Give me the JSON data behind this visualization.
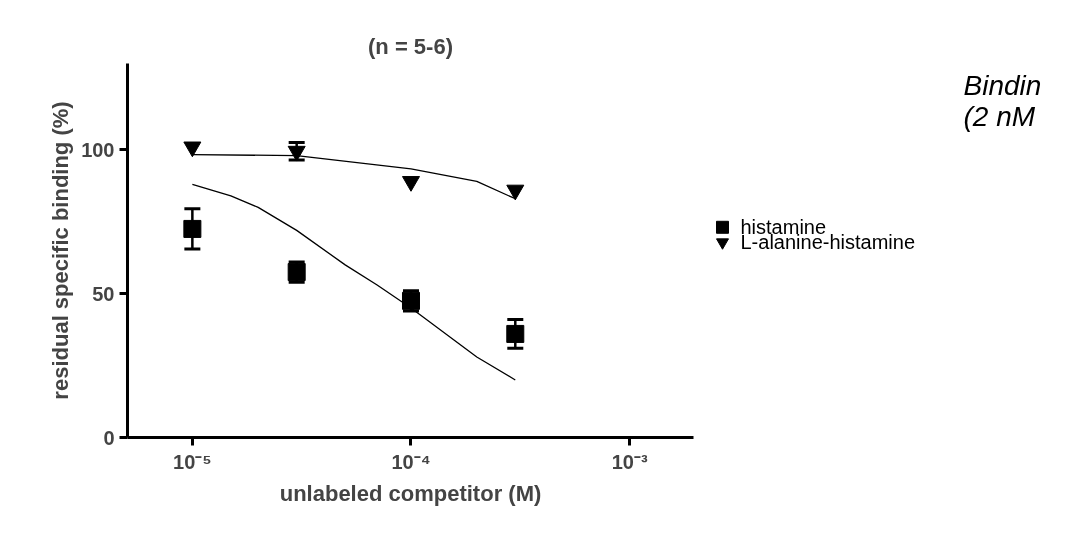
{
  "chart_data": {
    "type": "scatter",
    "title": "(n = 5-6)",
    "xlabel": "unlabeled competitor (M)",
    "ylabel": "residual specific binding (%)",
    "annotations": [
      "Bindin",
      "(2 nM"
    ],
    "log": "x",
    "xlim": [
      5.05e-06,
      0.00196
    ],
    "xticks": [
      {
        "value": 1e-05,
        "label": "10⁻⁵"
      },
      {
        "value": 0.0001,
        "label": "10⁻⁴"
      },
      {
        "value": 0.001,
        "label": "10⁻³"
      }
    ],
    "ylim": [
      0,
      130
    ],
    "yticks": [
      0,
      50,
      100
    ],
    "grid": false,
    "legend": "right",
    "series": [
      {
        "name": "histamine",
        "color": "#000000",
        "marker": "square",
        "x": [
          1e-05,
          3e-05,
          0.0001,
          0.0003
        ],
        "values": [
          72.5,
          57.5,
          47.5,
          36
        ],
        "errors": [
          7,
          3.5,
          3.5,
          5
        ]
      },
      {
        "name": "L-alanine-histamine",
        "color": "#000000",
        "marker": "triangle",
        "x": [
          1e-05,
          3e-05,
          0.0001,
          0.0003
        ],
        "values": [
          101,
          99.5,
          89,
          86
        ],
        "errors": [
          null,
          3,
          null,
          null
        ]
      },
      {
        "type": "line",
        "color": "#000000",
        "marker": "none",
        "x": [
          1e-05,
          1.5e-05,
          2e-05,
          3e-05,
          5e-05,
          7e-05,
          0.0001,
          0.0002,
          0.0003
        ],
        "values": [
          88,
          84,
          80,
          72,
          60,
          53,
          45,
          28,
          20
        ]
      },
      {
        "type": "line",
        "color": "#000000",
        "marker": "none",
        "x": [
          1e-05,
          3e-05,
          0.0001,
          0.0002,
          0.0003
        ],
        "values": [
          98.3,
          98,
          93.4,
          89,
          83
        ]
      }
    ]
  }
}
